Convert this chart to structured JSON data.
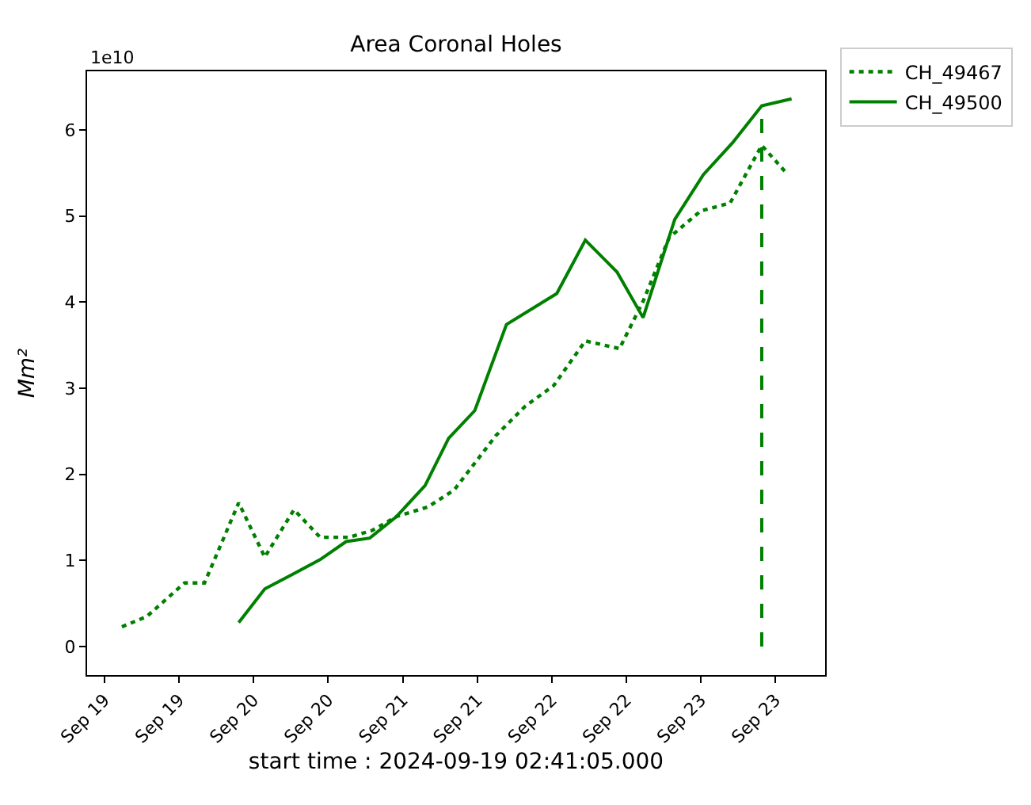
{
  "chart_data": {
    "type": "line",
    "title": "Area Coronal Holes",
    "xlabel": "start time : 2024-09-19 02:41:05.000",
    "ylabel": "Mm²",
    "annotations": [
      "1e10"
    ],
    "xlim": [
      "2024-09-18T21:12",
      "2024-09-23T20:00"
    ],
    "xticks": [
      {
        "value": "2024-09-19T00:00",
        "label": "Sep 19"
      },
      {
        "value": "2024-09-19T12:00",
        "label": "Sep 19"
      },
      {
        "value": "2024-09-20T00:00",
        "label": "Sep 20"
      },
      {
        "value": "2024-09-20T12:00",
        "label": "Sep 20"
      },
      {
        "value": "2024-09-21T00:00",
        "label": "Sep 21"
      },
      {
        "value": "2024-09-21T12:00",
        "label": "Sep 21"
      },
      {
        "value": "2024-09-22T00:00",
        "label": "Sep 22"
      },
      {
        "value": "2024-09-22T12:00",
        "label": "Sep 22"
      },
      {
        "value": "2024-09-23T00:00",
        "label": "Sep 23"
      },
      {
        "value": "2024-09-23T12:00",
        "label": "Sep 23"
      }
    ],
    "ylim": [
      -0.33,
      6.68
    ],
    "yticks": [
      0,
      1,
      2,
      3,
      4,
      5,
      6
    ],
    "legend": "top right",
    "series": [
      {
        "name": "CH_49467",
        "color": "#008000",
        "line_style": "dotted",
        "x": [
          "2024-09-19T02:48",
          "2024-09-19T06:48",
          "2024-09-19T12:54",
          "2024-09-19T16:06",
          "2024-09-19T21:36",
          "2024-09-20T01:48",
          "2024-09-20T06:30",
          "2024-09-20T10:42",
          "2024-09-20T15:24",
          "2024-09-20T19:06",
          "2024-09-20T23:00",
          "2024-09-21T04:00",
          "2024-09-21T08:18",
          "2024-09-21T15:00",
          "2024-09-21T19:42",
          "2024-09-22T00:18",
          "2024-09-22T05:24",
          "2024-09-22T10:54",
          "2024-09-22T14:42",
          "2024-09-22T18:54",
          "2024-09-23T00:00",
          "2024-09-23T04:42",
          "2024-09-23T09:48",
          "2024-09-23T14:00"
        ],
        "values": [
          0.23,
          0.35,
          0.74,
          0.74,
          1.67,
          1.04,
          1.59,
          1.27,
          1.27,
          1.35,
          1.51,
          1.62,
          1.82,
          2.45,
          2.79,
          3.03,
          3.55,
          3.46,
          4.01,
          4.75,
          5.06,
          5.15,
          5.82,
          5.48
        ]
      },
      {
        "name": "CH_49500",
        "color": "#008000",
        "line_style": "solid",
        "x": [
          "2024-09-19T21:36",
          "2024-09-20T01:48",
          "2024-09-20T06:00",
          "2024-09-20T10:42",
          "2024-09-20T14:54",
          "2024-09-20T18:42",
          "2024-09-20T23:00",
          "2024-09-21T03:36",
          "2024-09-21T07:24",
          "2024-09-21T11:36",
          "2024-09-21T16:42",
          "2024-09-22T00:48",
          "2024-09-22T05:24",
          "2024-09-22T10:30",
          "2024-09-22T14:42",
          "2024-09-22T19:48",
          "2024-09-23T00:24",
          "2024-09-23T05:06",
          "2024-09-23T09:48",
          "2024-09-23T14:36"
        ],
        "values": [
          0.28,
          0.67,
          0.83,
          1.01,
          1.22,
          1.26,
          1.51,
          1.87,
          2.42,
          2.74,
          3.74,
          4.1,
          4.72,
          4.35,
          3.82,
          4.96,
          5.48,
          5.85,
          6.28,
          6.36
        ]
      },
      {
        "color": "#008000",
        "line_style": "dashed",
        "x": [
          "2024-09-23T09:48",
          "2024-09-23T09:48"
        ],
        "values": [
          0,
          6.28
        ]
      }
    ]
  }
}
